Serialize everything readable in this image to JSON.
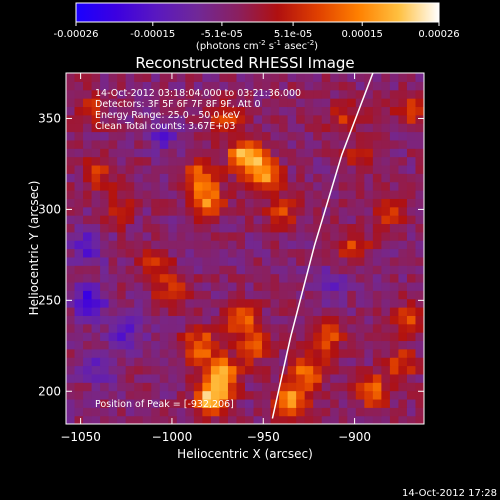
{
  "colorbar": {
    "tick_labels": [
      "-0.00026",
      "-0.00015",
      "-5.1e-05",
      "5.1e-05",
      "0.00015",
      "0.00026"
    ],
    "tick_values": [
      -0.00026,
      -0.00015,
      -5.1e-05,
      5.1e-05,
      0.00015,
      0.00026
    ],
    "units_base": "(photons cm",
    "units_sup1": "-2",
    "units_mid": " s",
    "units_sup2": "-1",
    "units_mid2": " asec",
    "units_sup3": "-2",
    "units_end": ")",
    "colors": [
      "#1a00ff",
      "#3c00e0",
      "#5a18c0",
      "#702898",
      "#8a2060",
      "#b01010",
      "#e04000",
      "#ff8000",
      "#ffc040",
      "#ffffff"
    ]
  },
  "chart_data": {
    "type": "heatmap",
    "title": "Reconstructed RHESSI Image",
    "xlabel": "Heliocentric X (arcsec)",
    "ylabel": "Heliocentric Y (arcsec)",
    "xlim": [
      -1058,
      -862
    ],
    "ylim": [
      182,
      375
    ],
    "x_ticks": [
      -1050,
      -1000,
      -950,
      -900
    ],
    "x_tick_labels": [
      "−1050",
      "−1000",
      "−950",
      "−900"
    ],
    "y_ticks": [
      200,
      250,
      300,
      350
    ],
    "y_tick_labels": [
      "200",
      "250",
      "300",
      "350"
    ],
    "peak_position": [
      -932,
      206
    ],
    "limb_points": [
      [
        -945,
        185
      ],
      [
        -935,
        230
      ],
      [
        -922,
        280
      ],
      [
        -907,
        330
      ],
      [
        -890,
        375
      ]
    ],
    "annotations": [
      "14-Oct-2012 03:18:04.000 to 03:21:36.000",
      "Detectors: 3F 5F 6F 7F 8F 9F, Att 0",
      "Energy Range: 25.0 - 50.0 keV",
      "Clean    Total counts: 3.67E+03"
    ],
    "peak_label": "Position of Peak = [-932,206]",
    "sources": [
      {
        "x": -978,
        "y": 196,
        "amp": 0.00026
      },
      {
        "x": -972,
        "y": 210,
        "amp": 0.00022
      },
      {
        "x": -985,
        "y": 225,
        "amp": 0.00018
      },
      {
        "x": -962,
        "y": 240,
        "amp": 0.00016
      },
      {
        "x": -955,
        "y": 225,
        "amp": 0.00014
      },
      {
        "x": -1000,
        "y": 255,
        "amp": 0.00012
      },
      {
        "x": -1010,
        "y": 270,
        "amp": 0.00011
      },
      {
        "x": -935,
        "y": 195,
        "amp": 0.0002
      },
      {
        "x": -925,
        "y": 210,
        "amp": 0.00018
      },
      {
        "x": -915,
        "y": 230,
        "amp": 0.00014
      },
      {
        "x": -890,
        "y": 200,
        "amp": 0.00015
      },
      {
        "x": -875,
        "y": 215,
        "amp": 0.00012
      },
      {
        "x": -870,
        "y": 240,
        "amp": 0.00011
      },
      {
        "x": -960,
        "y": 330,
        "amp": 0.00024
      },
      {
        "x": -950,
        "y": 320,
        "amp": 0.0002
      },
      {
        "x": -980,
        "y": 305,
        "amp": 0.00017
      },
      {
        "x": -985,
        "y": 318,
        "amp": 0.00015
      },
      {
        "x": -970,
        "y": 350,
        "amp": 0.00014
      },
      {
        "x": -940,
        "y": 300,
        "amp": 0.00012
      },
      {
        "x": -1040,
        "y": 320,
        "amp": 0.00011
      },
      {
        "x": -1030,
        "y": 300,
        "amp": 0.0001
      },
      {
        "x": -1045,
        "y": 355,
        "amp": 0.0001
      },
      {
        "x": -900,
        "y": 280,
        "amp": 0.00012
      },
      {
        "x": -880,
        "y": 300,
        "amp": 0.00013
      },
      {
        "x": -895,
        "y": 330,
        "amp": 0.0001
      },
      {
        "x": -870,
        "y": 355,
        "amp": 0.00011
      },
      {
        "x": -905,
        "y": 350,
        "amp": 9e-05
      },
      {
        "x": -1025,
        "y": 235,
        "amp": -0.00012
      },
      {
        "x": -1045,
        "y": 250,
        "amp": -0.00015
      },
      {
        "x": -1040,
        "y": 215,
        "amp": -0.0001
      },
      {
        "x": -1045,
        "y": 280,
        "amp": -0.00011
      },
      {
        "x": -1005,
        "y": 340,
        "amp": -0.0001
      },
      {
        "x": -915,
        "y": 260,
        "amp": -8e-05
      }
    ]
  },
  "timestamp": "14-Oct-2012 17:28"
}
